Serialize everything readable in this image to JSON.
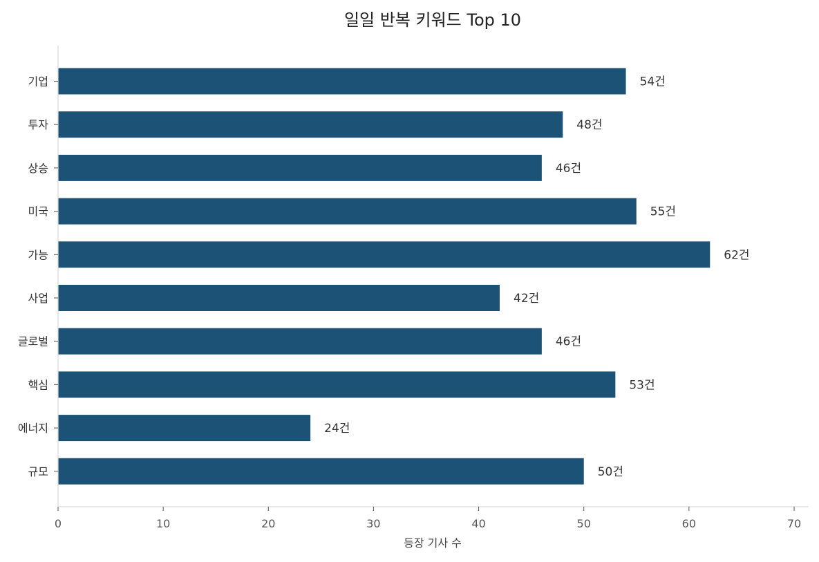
{
  "chart_data": {
    "type": "bar",
    "orientation": "horizontal",
    "title": "일일 반복 키워드 Top 10",
    "xlabel": "등장 기사 수",
    "ylabel": "",
    "categories": [
      "기업",
      "투자",
      "상승",
      "미국",
      "가능",
      "사업",
      "글로벌",
      "핵심",
      "에너지",
      "규모"
    ],
    "values": [
      54,
      48,
      46,
      55,
      62,
      42,
      46,
      53,
      24,
      50
    ],
    "value_labels": [
      "54건",
      "48건",
      "46건",
      "55건",
      "62건",
      "42건",
      "46건",
      "53건",
      "24건",
      "50건"
    ],
    "xlim": [
      0,
      70
    ],
    "xticks": [
      0,
      10,
      20,
      30,
      40,
      50,
      60,
      70
    ],
    "xtick_labels": [
      "0",
      "10",
      "20",
      "30",
      "40",
      "50",
      "60",
      "70"
    ],
    "grid": false,
    "bar_color": "#1b5276",
    "axis_color": "#d9d9d9"
  }
}
